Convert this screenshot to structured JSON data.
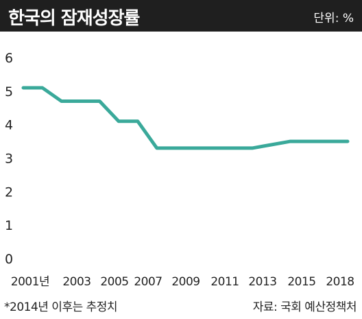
{
  "header": {
    "title": "한국의 잠재성장률",
    "unit": "단위: %"
  },
  "footer": {
    "note": "*2014년 이후는 추정치",
    "source": "자료: 국회 예산정책처"
  },
  "chart_data": {
    "type": "line",
    "title": "한국의 잠재성장률",
    "ylabel": "",
    "xlabel": "",
    "ylim": [
      0,
      6
    ],
    "yticks": [
      "0",
      "1",
      "2",
      "3",
      "4",
      "5",
      "6"
    ],
    "xticks": [
      {
        "x": 2001,
        "label": "2001년"
      },
      {
        "x": 2003,
        "label": "2003"
      },
      {
        "x": 2005,
        "label": "2005"
      },
      {
        "x": 2007,
        "label": "2007"
      },
      {
        "x": 2009,
        "label": "2009"
      },
      {
        "x": 2011,
        "label": "2011"
      },
      {
        "x": 2013,
        "label": "2013"
      },
      {
        "x": 2015,
        "label": "2015"
      },
      {
        "x": 2018,
        "label": "2018"
      }
    ],
    "x": [
      2001,
      2002,
      2003,
      2004,
      2005,
      2006,
      2007,
      2008,
      2009,
      2010,
      2011,
      2012,
      2013,
      2014,
      2015,
      2016,
      2017,
      2018
    ],
    "series": [
      {
        "values": [
          5.1,
          5.1,
          4.7,
          4.7,
          4.7,
          4.1,
          4.1,
          3.3,
          3.3,
          3.3,
          3.3,
          3.3,
          3.3,
          3.4,
          3.5,
          3.5,
          3.5,
          3.5
        ],
        "color": "#3aa99a"
      }
    ],
    "grid": false,
    "legend": "none"
  }
}
